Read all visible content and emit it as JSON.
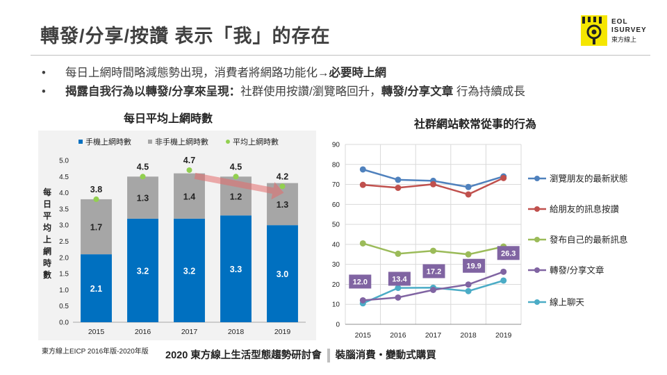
{
  "page": {
    "title": "轉發/分享/按讚 表示「我」的存在",
    "logo": {
      "line1": "EOL",
      "line2": "ISURVEY",
      "line3": "東方線上"
    },
    "bullets": [
      {
        "parts": [
          {
            "text": "每日上網時間略減態勢出現，消費者將網路功能化",
            "bold": false
          },
          {
            "text": "→",
            "bold": true
          },
          {
            "text": "必要時上網",
            "bold": true
          }
        ]
      },
      {
        "parts": [
          {
            "text": "揭露自我行為以轉發/分享來呈現：",
            "bold": true
          },
          {
            "text": "社群使用按讚/瀏覽略回升，",
            "bold": false
          },
          {
            "text": "轉發/分享文章",
            "bold": true
          },
          {
            "text": " 行為持續成長",
            "bold": false
          }
        ]
      }
    ],
    "bullet_marker": "•",
    "source": "東方線上EICP 2016年版-2020年版",
    "footer_left": "2020 東方線上生活型態趨勢研討會",
    "footer_right": "裝腦消費・變動式購買"
  },
  "chart_data": [
    {
      "type": "bar",
      "stacked": true,
      "title": "每日平均上網時數",
      "ylabel": "每日平均上網時數",
      "categories": [
        "2015",
        "2016",
        "2017",
        "2018",
        "2019"
      ],
      "series": [
        {
          "name": "手機上網時數",
          "values": [
            2.1,
            3.2,
            3.2,
            3.3,
            3.0
          ],
          "color": "#0070c0"
        },
        {
          "name": "非手機上網時數",
          "values": [
            1.7,
            1.3,
            1.4,
            1.2,
            1.3
          ],
          "color": "#a6a6a6"
        },
        {
          "name": "平均上網時數",
          "values": [
            3.8,
            4.5,
            4.7,
            4.5,
            4.2
          ],
          "color": "#92d050",
          "kind": "point"
        }
      ],
      "ylim": [
        0,
        5
      ],
      "yticks": [
        "0.0",
        "0.5",
        "1.0",
        "1.5",
        "2.0",
        "2.5",
        "3.0",
        "3.5",
        "4.0",
        "4.5",
        "5.0"
      ],
      "legend": "top",
      "annotation": {
        "kind": "arrow",
        "from": "2017",
        "to": "2019",
        "color": "#e46c6c"
      }
    },
    {
      "type": "line",
      "title": "社群網站較常從事的行為",
      "x": [
        "2015",
        "2016",
        "2017",
        "2018",
        "2019"
      ],
      "series": [
        {
          "name": "瀏覽朋友的最新狀態",
          "values": [
            77.5,
            72.3,
            71.8,
            68.7,
            74.0
          ],
          "color": "#4f81bd"
        },
        {
          "name": "給朋友的訊息按讚",
          "values": [
            69.8,
            68.3,
            70.1,
            65.0,
            73.2
          ],
          "color": "#c0504d"
        },
        {
          "name": "發布自己的最新訊息",
          "values": [
            40.5,
            35.3,
            36.8,
            35.0,
            38.9
          ],
          "color": "#9bbb59"
        },
        {
          "name": "轉發/分享文章",
          "values": [
            12.0,
            13.4,
            17.2,
            19.9,
            26.3
          ],
          "color": "#8064a2",
          "labeled": true
        },
        {
          "name": "線上聊天",
          "values": [
            10.5,
            18.2,
            18.3,
            16.6,
            21.9
          ],
          "color": "#4bacc6"
        }
      ],
      "ylim": [
        0,
        90
      ],
      "yticks": [
        "0",
        "10",
        "20",
        "30",
        "40",
        "50",
        "60",
        "70",
        "80",
        "90"
      ],
      "legend": "right"
    }
  ]
}
